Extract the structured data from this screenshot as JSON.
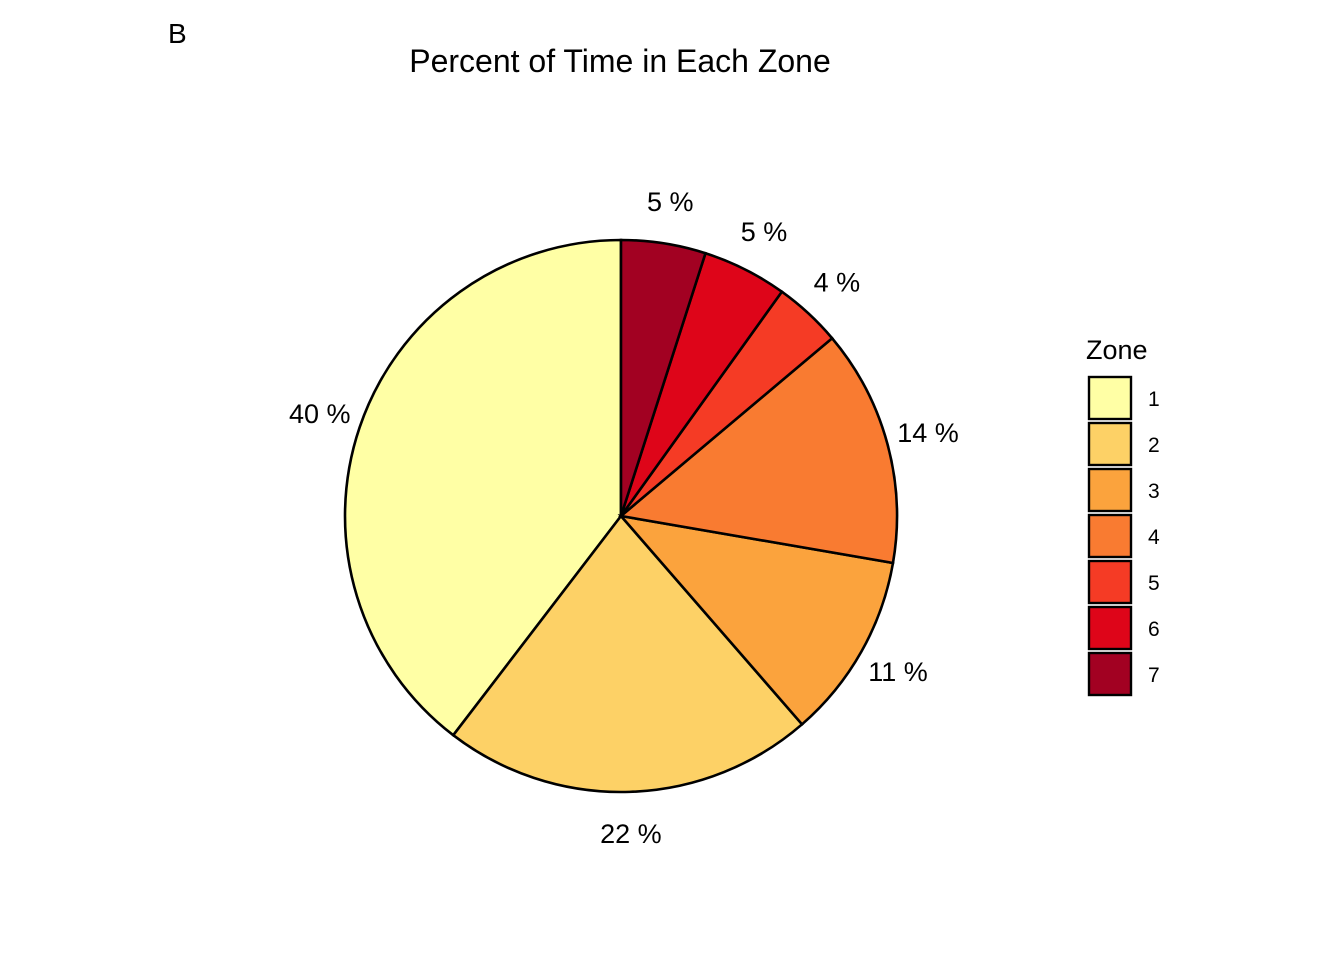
{
  "panel_tag": "B",
  "chart_data": {
    "type": "pie",
    "title": "Percent of Time in Each Zone",
    "legend_title": "Zone",
    "legend_position": "right",
    "start": "12 o'clock",
    "direction": "counter-clockwise",
    "slices": [
      {
        "zone": "1",
        "value": 40,
        "label": "40 %",
        "color": "#FFFFA5"
      },
      {
        "zone": "2",
        "value": 22,
        "label": "22 %",
        "color": "#FDD166"
      },
      {
        "zone": "3",
        "value": 11,
        "label": "11 %",
        "color": "#FBA33D"
      },
      {
        "zone": "4",
        "value": 14,
        "label": "14 %",
        "color": "#F97B31"
      },
      {
        "zone": "5",
        "value": 4,
        "label": "4 %",
        "color": "#F53B25"
      },
      {
        "zone": "6",
        "value": 5,
        "label": "5 %",
        "color": "#DE0519"
      },
      {
        "zone": "7",
        "value": 5,
        "label": "5 %",
        "color": "#A20122"
      }
    ]
  }
}
